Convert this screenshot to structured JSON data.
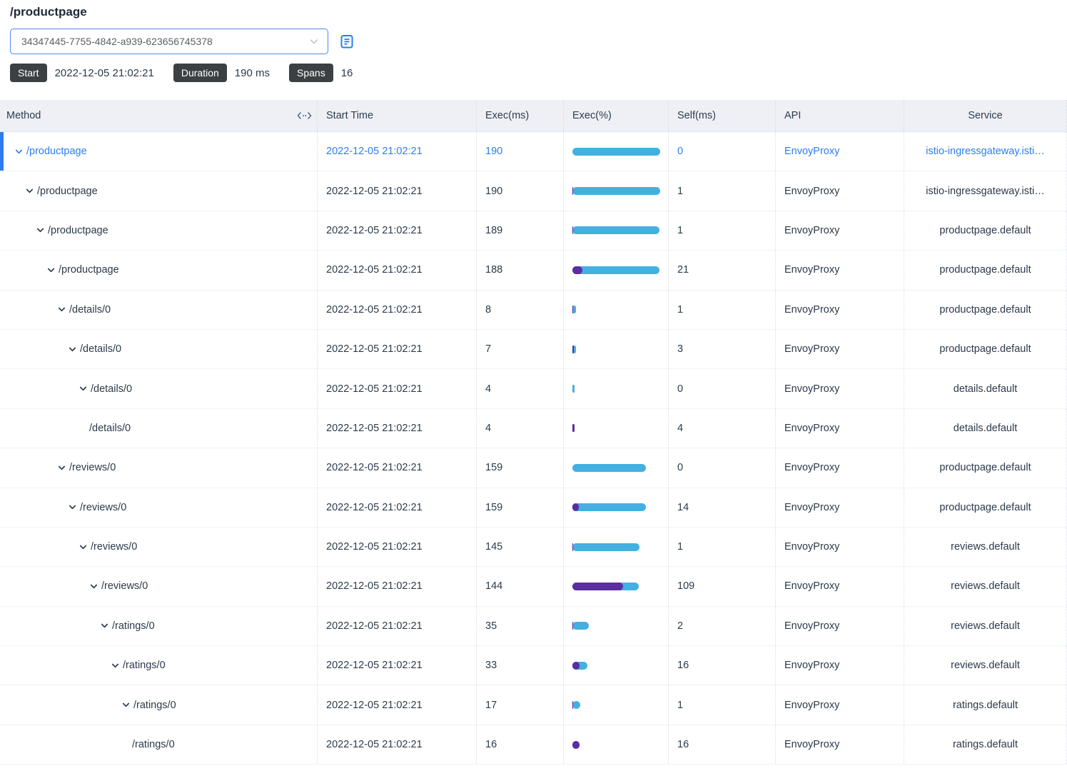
{
  "page_title": "/productpage",
  "trace_selector": {
    "value": "34347445-7755-4842-a939-623656745378"
  },
  "summary": {
    "badges": [
      {
        "label": "Start",
        "value": "2022-12-05 21:02:21"
      },
      {
        "label": "Duration",
        "value": "190 ms"
      },
      {
        "label": "Spans",
        "value": "16"
      }
    ]
  },
  "table": {
    "columns": [
      "Method",
      "Start Time",
      "Exec(ms)",
      "Exec(%)",
      "Self(ms)",
      "API",
      "Service"
    ],
    "total_duration_ms": 190,
    "rows": [
      {
        "level": 0,
        "leaf": false,
        "selected": true,
        "method": "/productpage",
        "start_time": "2022-12-05 21:02:21",
        "exec_ms": "190",
        "exec_pct": 100,
        "self_ms": "0",
        "self_pct": 0,
        "api": "EnvoyProxy",
        "service": "istio-ingressgateway.isti…"
      },
      {
        "level": 1,
        "leaf": false,
        "selected": false,
        "method": "/productpage",
        "start_time": "2022-12-05 21:02:21",
        "exec_ms": "190",
        "exec_pct": 100,
        "self_ms": "1",
        "self_pct": 0.5,
        "api": "EnvoyProxy",
        "service": "istio-ingressgateway.isti…"
      },
      {
        "level": 2,
        "leaf": false,
        "selected": false,
        "method": "/productpage",
        "start_time": "2022-12-05 21:02:21",
        "exec_ms": "189",
        "exec_pct": 99.5,
        "self_ms": "1",
        "self_pct": 0.5,
        "api": "EnvoyProxy",
        "service": "productpage.default"
      },
      {
        "level": 3,
        "leaf": false,
        "selected": false,
        "method": "/productpage",
        "start_time": "2022-12-05 21:02:21",
        "exec_ms": "188",
        "exec_pct": 98.9,
        "self_ms": "21",
        "self_pct": 11.1,
        "api": "EnvoyProxy",
        "service": "productpage.default"
      },
      {
        "level": 4,
        "leaf": false,
        "selected": false,
        "method": "/details/0",
        "start_time": "2022-12-05 21:02:21",
        "exec_ms": "8",
        "exec_pct": 4.2,
        "self_ms": "1",
        "self_pct": 0.5,
        "api": "EnvoyProxy",
        "service": "productpage.default"
      },
      {
        "level": 5,
        "leaf": false,
        "selected": false,
        "method": "/details/0",
        "start_time": "2022-12-05 21:02:21",
        "exec_ms": "7",
        "exec_pct": 3.7,
        "self_ms": "3",
        "self_pct": 1.6,
        "api": "EnvoyProxy",
        "service": "productpage.default"
      },
      {
        "level": 6,
        "leaf": false,
        "selected": false,
        "method": "/details/0",
        "start_time": "2022-12-05 21:02:21",
        "exec_ms": "4",
        "exec_pct": 2.1,
        "self_ms": "0",
        "self_pct": 0,
        "api": "EnvoyProxy",
        "service": "details.default"
      },
      {
        "level": 7,
        "leaf": true,
        "selected": false,
        "method": "/details/0",
        "start_time": "2022-12-05 21:02:21",
        "exec_ms": "4",
        "exec_pct": 2.1,
        "self_ms": "4",
        "self_pct": 2.1,
        "api": "EnvoyProxy",
        "service": "details.default"
      },
      {
        "level": 4,
        "leaf": false,
        "selected": false,
        "method": "/reviews/0",
        "start_time": "2022-12-05 21:02:21",
        "exec_ms": "159",
        "exec_pct": 83.7,
        "self_ms": "0",
        "self_pct": 0,
        "api": "EnvoyProxy",
        "service": "productpage.default"
      },
      {
        "level": 5,
        "leaf": false,
        "selected": false,
        "method": "/reviews/0",
        "start_time": "2022-12-05 21:02:21",
        "exec_ms": "159",
        "exec_pct": 83.7,
        "self_ms": "14",
        "self_pct": 7.4,
        "api": "EnvoyProxy",
        "service": "productpage.default"
      },
      {
        "level": 6,
        "leaf": false,
        "selected": false,
        "method": "/reviews/0",
        "start_time": "2022-12-05 21:02:21",
        "exec_ms": "145",
        "exec_pct": 76.3,
        "self_ms": "1",
        "self_pct": 0.5,
        "api": "EnvoyProxy",
        "service": "reviews.default"
      },
      {
        "level": 7,
        "leaf": false,
        "selected": false,
        "method": "/reviews/0",
        "start_time": "2022-12-05 21:02:21",
        "exec_ms": "144",
        "exec_pct": 75.8,
        "self_ms": "109",
        "self_pct": 57.4,
        "api": "EnvoyProxy",
        "service": "reviews.default"
      },
      {
        "level": 8,
        "leaf": false,
        "selected": false,
        "method": "/ratings/0",
        "start_time": "2022-12-05 21:02:21",
        "exec_ms": "35",
        "exec_pct": 18.4,
        "self_ms": "2",
        "self_pct": 1.1,
        "api": "EnvoyProxy",
        "service": "reviews.default"
      },
      {
        "level": 9,
        "leaf": false,
        "selected": false,
        "method": "/ratings/0",
        "start_time": "2022-12-05 21:02:21",
        "exec_ms": "33",
        "exec_pct": 17.4,
        "self_ms": "16",
        "self_pct": 8.4,
        "api": "EnvoyProxy",
        "service": "reviews.default"
      },
      {
        "level": 10,
        "leaf": false,
        "selected": false,
        "method": "/ratings/0",
        "start_time": "2022-12-05 21:02:21",
        "exec_ms": "17",
        "exec_pct": 8.9,
        "self_ms": "1",
        "self_pct": 0.5,
        "api": "EnvoyProxy",
        "service": "ratings.default"
      },
      {
        "level": 11,
        "leaf": true,
        "selected": false,
        "method": "/ratings/0",
        "start_time": "2022-12-05 21:02:21",
        "exec_ms": "16",
        "exec_pct": 8.4,
        "self_ms": "16",
        "self_pct": 8.4,
        "api": "EnvoyProxy",
        "service": "ratings.default"
      }
    ]
  },
  "colors": {
    "accent_blue": "#2e7cf0",
    "bar_blue": "#42b0e0",
    "bar_purple": "#5b2da0",
    "badge_bg": "#3d4043",
    "table_header_bg": "#eef0f5"
  }
}
